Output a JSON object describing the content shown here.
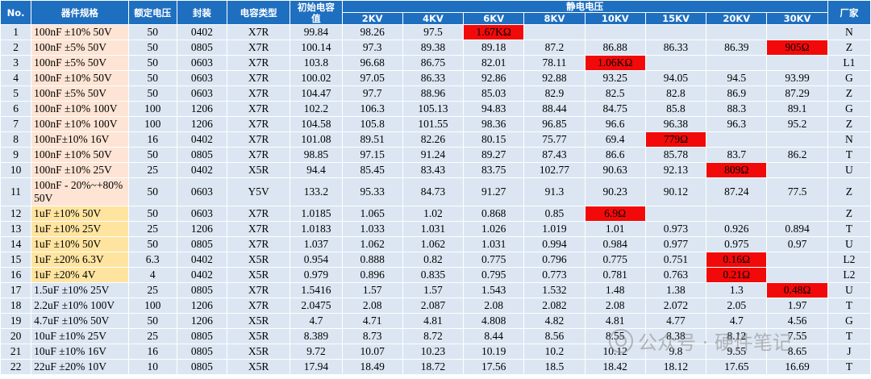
{
  "headers": {
    "no": "No.",
    "spec": "器件规格",
    "rated_voltage": "额定电压",
    "package": "封装",
    "dielectric": "电容类型",
    "initial": "初始电容值",
    "esd_group": "静电电压",
    "levels": [
      "2KV",
      "4KV",
      "6KV",
      "8KV",
      "10KV",
      "15KV",
      "20KV",
      "30KV"
    ],
    "maker": "厂家"
  },
  "rows": [
    {
      "no": "1",
      "spec": "100nF ±10% 50V",
      "v": "50",
      "pkg": "0402",
      "type": "X7R",
      "init": "99.84",
      "vals": [
        "98.26",
        "97.5",
        "1.67KΩ",
        "",
        "",
        "",
        "",
        ""
      ],
      "maker": "N",
      "tone": "peach"
    },
    {
      "no": "2",
      "spec": "100nF ±5% 50V",
      "v": "50",
      "pkg": "0805",
      "type": "X7R",
      "init": "100.14",
      "vals": [
        "97.3",
        "89.38",
        "89.18",
        "87.2",
        "86.88",
        "86.33",
        "86.39",
        "905Ω"
      ],
      "maker": "Z",
      "tone": "peach"
    },
    {
      "no": "3",
      "spec": "100nF ±5% 50V",
      "v": "50",
      "pkg": "0603",
      "type": "X7R",
      "init": "103.8",
      "vals": [
        "96.68",
        "86.75",
        "82.01",
        "78.11",
        "1.06KΩ",
        "",
        "",
        ""
      ],
      "maker": "L1",
      "tone": "peach"
    },
    {
      "no": "4",
      "spec": "100nF ±10% 50V",
      "v": "50",
      "pkg": "0603",
      "type": "X7R",
      "init": "100.02",
      "vals": [
        "97.05",
        "86.33",
        "92.86",
        "92.88",
        "93.25",
        "94.05",
        "94.5",
        "93.99"
      ],
      "maker": "G",
      "tone": "peach"
    },
    {
      "no": "5",
      "spec": "100nF ±5% 50V",
      "v": "50",
      "pkg": "0603",
      "type": "X7R",
      "init": "104.47",
      "vals": [
        "97.7",
        "88.96",
        "85.03",
        "82.9",
        "82.5",
        "82.8",
        "86.9",
        "87.29"
      ],
      "maker": "Z",
      "tone": "peach"
    },
    {
      "no": "6",
      "spec": "100nF ±10% 100V",
      "v": "100",
      "pkg": "1206",
      "type": "X7R",
      "init": "102.2",
      "vals": [
        "106.3",
        "105.13",
        "94.83",
        "88.44",
        "84.75",
        "85.8",
        "88.3",
        "89.1"
      ],
      "maker": "G",
      "tone": "peach"
    },
    {
      "no": "7",
      "spec": "100nF ±10% 100V",
      "v": "100",
      "pkg": "1206",
      "type": "X7R",
      "init": "104.58",
      "vals": [
        "105.8",
        "101.55",
        "98.36",
        "96.85",
        "96.6",
        "96.38",
        "96.3",
        "95.2"
      ],
      "maker": "Z",
      "tone": "peach"
    },
    {
      "no": "8",
      "spec": "100nF±10%   16V",
      "v": "16",
      "pkg": "0402",
      "type": "X7R",
      "init": "101.08",
      "vals": [
        "89.51",
        "82.26",
        "80.15",
        "75.77",
        "69.4",
        "779Ω",
        "",
        ""
      ],
      "maker": "N",
      "tone": "peach"
    },
    {
      "no": "9",
      "spec": "100nF ±10% 50V",
      "v": "50",
      "pkg": "0805",
      "type": "X7R",
      "init": "98.85",
      "vals": [
        "97.15",
        "91.24",
        "89.27",
        "87.43",
        "86.6",
        "85.78",
        "83.7",
        "86.2"
      ],
      "maker": "T",
      "tone": "peach"
    },
    {
      "no": "10",
      "spec": "100nF ±10%   25V",
      "v": "25",
      "pkg": "0402",
      "type": "X5R",
      "init": "94.4",
      "vals": [
        "85.45",
        "83.43",
        "83.75",
        "102.77",
        "90.63",
        "92.13",
        "809Ω",
        ""
      ],
      "maker": "U",
      "tone": "peach"
    },
    {
      "no": "11",
      "spec": "100nF - 20%~+80% 50V",
      "v": "50",
      "pkg": "0603",
      "type": "Y5V",
      "init": "133.2",
      "vals": [
        "95.33",
        "84.73",
        "91.27",
        "91.3",
        "90.23",
        "90.12",
        "87.24",
        "77.5"
      ],
      "maker": "Z",
      "tone": "peach",
      "tall": true
    },
    {
      "no": "12",
      "spec": "1uF ±10% 50V",
      "v": "50",
      "pkg": "0603",
      "type": "X7R",
      "init": "1.0185",
      "vals": [
        "1.065",
        "1.02",
        "0.868",
        "0.85",
        "6.9Ω",
        "",
        "",
        ""
      ],
      "maker": "Z",
      "tone": "yellow"
    },
    {
      "no": "13",
      "spec": "1uF ±10% 25V",
      "v": "25",
      "pkg": "1206",
      "type": "X7R",
      "init": "1.0183",
      "vals": [
        "1.033",
        "1.031",
        "1.026",
        "1.019",
        "1.01",
        "0.973",
        "0.926",
        "0.894"
      ],
      "maker": "T",
      "tone": "yellow"
    },
    {
      "no": "14",
      "spec": "1uF ±10% 50V",
      "v": "50",
      "pkg": "0805",
      "type": "X7R",
      "init": "1.037",
      "vals": [
        "1.062",
        "1.062",
        "1.031",
        "0.994",
        "0.984",
        "0.977",
        "0.975",
        "0.97"
      ],
      "maker": "U",
      "tone": "yellow"
    },
    {
      "no": "15",
      "spec": "1uF ±20% 6.3V",
      "v": "6.3",
      "pkg": "0402",
      "type": "X5R",
      "init": "0.954",
      "vals": [
        "0.888",
        "0.82",
        "0.775",
        "0.796",
        "0.775",
        "0.751",
        "0.16Ω",
        ""
      ],
      "maker": "L2",
      "tone": "yellow"
    },
    {
      "no": "16",
      "spec": "1uF ±20% 4V",
      "v": "4",
      "pkg": "0402",
      "type": "X5R",
      "init": "0.979",
      "vals": [
        "0.896",
        "0.835",
        "0.795",
        "0.773",
        "0.781",
        "0.763",
        "0.21Ω",
        ""
      ],
      "maker": "L2",
      "tone": "yellow"
    },
    {
      "no": "17",
      "spec": "1.5uF ±10% 25V",
      "v": "25",
      "pkg": "0805",
      "type": "X7R",
      "init": "1.5416",
      "vals": [
        "1.57",
        "1.57",
        "1.543",
        "1.532",
        "1.48",
        "1.38",
        "1.3",
        "0.48Ω"
      ],
      "maker": "U",
      "tone": ""
    },
    {
      "no": "18",
      "spec": "2.2uF ±10% 100V",
      "v": "100",
      "pkg": "1206",
      "type": "X7R",
      "init": "2.0475",
      "vals": [
        "2.08",
        "2.087",
        "2.08",
        "2.082",
        "2.08",
        "2.072",
        "2.05",
        "1.97"
      ],
      "maker": "T",
      "tone": ""
    },
    {
      "no": "19",
      "spec": "4.7uF ±10% 50V",
      "v": "50",
      "pkg": "1206",
      "type": "X5R",
      "init": "4.7",
      "vals": [
        "4.71",
        "4.81",
        "4.808",
        "4.82",
        "4.81",
        "4.77",
        "4.7",
        "4.56"
      ],
      "maker": "G",
      "tone": ""
    },
    {
      "no": "20",
      "spec": "10uF ±10% 25V",
      "v": "25",
      "pkg": "0805",
      "type": "X5R",
      "init": "8.389",
      "vals": [
        "8.73",
        "8.72",
        "8.44",
        "8.56",
        "8.55",
        "8.38",
        "8.12",
        "7.55"
      ],
      "maker": "T",
      "tone": ""
    },
    {
      "no": "21",
      "spec": "10uF ±10% 16V",
      "v": "16",
      "pkg": "0805",
      "type": "X5R",
      "init": "9.72",
      "vals": [
        "10.07",
        "10.23",
        "10.19",
        "10.2",
        "10.12",
        "9.8",
        "9.55",
        "8.65"
      ],
      "maker": "J",
      "tone": ""
    },
    {
      "no": "22",
      "spec": "22uF ±20% 10V",
      "v": "10",
      "pkg": "0805",
      "type": "X5R",
      "init": "17.94",
      "vals": [
        "18.49",
        "18.72",
        "17.56",
        "18.5",
        "18.42",
        "18.12",
        "17.65",
        "16.69"
      ],
      "maker": "T",
      "tone": ""
    }
  ],
  "fail_color": "#f20a0a",
  "header_color": "#1f6fc0",
  "watermark": "公众号 · 硬件笔记"
}
